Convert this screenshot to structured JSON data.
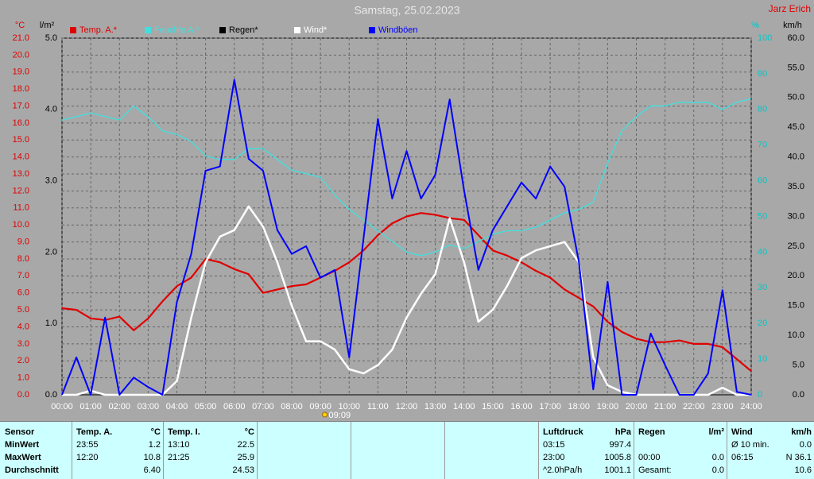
{
  "chart_data": {
    "type": "line",
    "title": "Samstag, 25.02.2023",
    "subtitle": "Jarz Erich",
    "xlim": [
      0,
      24
    ],
    "xticks": [
      {
        "value": 0,
        "label": "00:00"
      },
      {
        "value": 1,
        "label": "01:00"
      },
      {
        "value": 2,
        "label": "02:00"
      },
      {
        "value": 3,
        "label": "03:00"
      },
      {
        "value": 4,
        "label": "04:00"
      },
      {
        "value": 5,
        "label": "05:00"
      },
      {
        "value": 6,
        "label": "06:00"
      },
      {
        "value": 7,
        "label": "07:00"
      },
      {
        "value": 8,
        "label": "08:00"
      },
      {
        "value": 9,
        "label": "09:00"
      },
      {
        "value": 10,
        "label": "10:00"
      },
      {
        "value": 11,
        "label": "11:00"
      },
      {
        "value": 12,
        "label": "12:00"
      },
      {
        "value": 13,
        "label": "13:00"
      },
      {
        "value": 14,
        "label": "14:00"
      },
      {
        "value": 15,
        "label": "15:00"
      },
      {
        "value": 16,
        "label": "16:00"
      },
      {
        "value": 17,
        "label": "17:00"
      },
      {
        "value": 18,
        "label": "18:00"
      },
      {
        "value": 19,
        "label": "19:00"
      },
      {
        "value": 20,
        "label": "20:00"
      },
      {
        "value": 21,
        "label": "21:00"
      },
      {
        "value": 22,
        "label": "22:00"
      },
      {
        "value": 23,
        "label": "23:00"
      },
      {
        "value": 24,
        "label": "24:00"
      }
    ],
    "grid": true,
    "annotation": {
      "text": "09:09",
      "x": 9.15
    },
    "axes": [
      {
        "label": "°C",
        "color": "#e00000",
        "lim": [
          0,
          21
        ],
        "ticks": [
          {
            "value": 0,
            "label": "0.0"
          },
          {
            "value": 1,
            "label": "1.0"
          },
          {
            "value": 2,
            "label": "2.0"
          },
          {
            "value": 3,
            "label": "3.0"
          },
          {
            "value": 4,
            "label": "4.0"
          },
          {
            "value": 5,
            "label": "5.0"
          },
          {
            "value": 6,
            "label": "6.0"
          },
          {
            "value": 7,
            "label": "7.0"
          },
          {
            "value": 8,
            "label": "8.0"
          },
          {
            "value": 9,
            "label": "9.0"
          },
          {
            "value": 10,
            "label": "10.0"
          },
          {
            "value": 11,
            "label": "11.0"
          },
          {
            "value": 12,
            "label": "12.0"
          },
          {
            "value": 13,
            "label": "13.0"
          },
          {
            "value": 14,
            "label": "14.0"
          },
          {
            "value": 15,
            "label": "15.0"
          },
          {
            "value": 16,
            "label": "16.0"
          },
          {
            "value": 17,
            "label": "17.0"
          },
          {
            "value": 18,
            "label": "18.0"
          },
          {
            "value": 19,
            "label": "19.0"
          },
          {
            "value": 20,
            "label": "20.0"
          },
          {
            "value": 21,
            "label": "21.0"
          }
        ]
      },
      {
        "label": "l/m²",
        "color": "#000000",
        "lim": [
          0,
          5
        ],
        "ticks": [
          {
            "value": 0,
            "label": "0.0"
          },
          {
            "value": 1,
            "label": "1.0"
          },
          {
            "value": 2,
            "label": "2.0"
          },
          {
            "value": 3,
            "label": "3.0"
          },
          {
            "value": 4,
            "label": "4.0"
          },
          {
            "value": 5,
            "label": "5.0"
          }
        ]
      },
      {
        "label": "%",
        "color": "#00c8c8",
        "lim": [
          0,
          100
        ],
        "ticks": [
          0,
          10,
          20,
          30,
          40,
          50,
          60,
          70,
          80,
          90,
          100
        ]
      },
      {
        "label": "km/h",
        "color": "#000000",
        "lim": [
          0,
          60
        ],
        "ticks": [
          {
            "value": 0,
            "label": "0.0"
          },
          {
            "value": 5,
            "label": "5.0"
          },
          {
            "value": 10,
            "label": "10.0"
          },
          {
            "value": 15,
            "label": "15.0"
          },
          {
            "value": 20,
            "label": "20.0"
          },
          {
            "value": 25,
            "label": "25.0"
          },
          {
            "value": 30,
            "label": "30.0"
          },
          {
            "value": 35,
            "label": "35.0"
          },
          {
            "value": 40,
            "label": "40.0"
          },
          {
            "value": 45,
            "label": "45.0"
          },
          {
            "value": 50,
            "label": "50.0"
          },
          {
            "value": 55,
            "label": "55.0"
          },
          {
            "value": 60,
            "label": "60.0"
          }
        ]
      }
    ],
    "x": [
      0,
      0.5,
      1,
      1.5,
      2,
      2.5,
      3,
      3.5,
      4,
      4.5,
      5,
      5.5,
      6,
      6.5,
      7,
      7.5,
      8,
      8.5,
      9,
      9.5,
      10,
      10.5,
      11,
      11.5,
      12,
      12.5,
      13,
      13.5,
      14,
      14.5,
      15,
      15.5,
      16,
      16.5,
      17,
      17.5,
      18,
      18.5,
      19,
      19.5,
      20,
      20.5,
      21,
      21.5,
      22,
      22.5,
      23,
      23.5,
      24
    ],
    "series": [
      {
        "name": "Temp. A.*",
        "color": "#e00000",
        "axis": 0,
        "width": 2.2,
        "values": [
          5.1,
          5.0,
          4.5,
          4.4,
          4.6,
          3.8,
          4.5,
          5.5,
          6.4,
          6.9,
          8.0,
          7.8,
          7.4,
          7.1,
          6.0,
          6.2,
          6.4,
          6.5,
          6.9,
          7.3,
          7.8,
          8.5,
          9.4,
          10.1,
          10.5,
          10.7,
          10.6,
          10.4,
          10.3,
          9.4,
          8.5,
          8.2,
          7.8,
          7.3,
          6.9,
          6.2,
          5.7,
          5.2,
          4.3,
          3.7,
          3.3,
          3.1,
          3.1,
          3.2,
          3.0,
          3.0,
          2.8,
          2.1,
          1.4
        ]
      },
      {
        "name": "Feuchte A.*",
        "color": "#40e0e0",
        "axis": 2,
        "width": 1.3,
        "values": [
          77,
          78,
          79,
          78,
          77,
          81,
          78,
          74,
          73,
          71,
          67,
          66,
          66,
          69,
          69,
          66,
          63,
          62,
          61,
          56,
          52,
          49,
          46,
          43,
          40,
          39,
          40,
          42,
          41,
          43,
          45,
          46,
          46,
          47,
          49,
          51,
          52,
          54,
          65,
          74,
          78,
          81,
          81,
          82,
          82,
          82,
          80,
          82,
          83
        ]
      },
      {
        "name": "Regen*",
        "color": "#000000",
        "axis": 1,
        "width": 1,
        "values": [
          0,
          0,
          0,
          0,
          0,
          0,
          0,
          0,
          0,
          0,
          0,
          0,
          0,
          0,
          0,
          0,
          0,
          0,
          0,
          0,
          0,
          0,
          0,
          0,
          0,
          0,
          0,
          0,
          0,
          0,
          0,
          0,
          0,
          0,
          0,
          0,
          0,
          0,
          0,
          0,
          0,
          0,
          0,
          0,
          0,
          0,
          0,
          0,
          0
        ]
      },
      {
        "name": "Wind*",
        "color": "#ffffff",
        "axis": 3,
        "width": 2.5,
        "values": [
          0,
          0,
          0.7,
          0,
          0,
          0,
          0,
          0,
          2.3,
          13,
          22.3,
          26.6,
          27.7,
          31.7,
          28.3,
          22.3,
          15,
          9,
          9,
          7.6,
          4.3,
          3.6,
          5,
          7.6,
          13,
          17,
          20.3,
          29.7,
          22.3,
          12.3,
          14.3,
          18.3,
          23,
          24.3,
          25,
          25.7,
          22.3,
          6.3,
          1.6,
          0.5,
          0,
          0,
          0,
          0,
          0,
          0,
          1.2,
          0,
          0
        ]
      },
      {
        "name": "Windböen",
        "color": "#0000ff",
        "axis": 3,
        "width": 2,
        "values": [
          0,
          6.3,
          0,
          13,
          0,
          2.9,
          1.3,
          0,
          15.6,
          23.7,
          37.7,
          38.4,
          53,
          39.7,
          37.7,
          27.7,
          23.7,
          25,
          19.7,
          21,
          6.3,
          26.3,
          46.4,
          33,
          41,
          33,
          37,
          49.7,
          34.4,
          21,
          27.7,
          31.7,
          35.7,
          33,
          38.4,
          35,
          22.3,
          0.9,
          19,
          0,
          0,
          10.3,
          5,
          0,
          0,
          3.6,
          17.6,
          0.5,
          0
        ]
      }
    ]
  },
  "table": {
    "sensor": [
      "Sensor",
      "MinWert",
      "MaxWert",
      "Durchschnitt"
    ],
    "groups": [
      {
        "rows": [
          [
            "Temp. A.",
            "°C"
          ],
          [
            "23:55",
            "1.2"
          ],
          [
            "12:20",
            "10.8"
          ],
          [
            null,
            "6.40"
          ]
        ]
      },
      {
        "rows": [
          [
            "Temp. I.",
            "°C"
          ],
          [
            "13:10",
            "22.5"
          ],
          [
            "21:25",
            "25.9"
          ],
          [
            null,
            "24.53"
          ]
        ]
      },
      {
        "rows": [
          [
            "Luftdruck",
            "hPa"
          ],
          [
            "03:15",
            "997.4"
          ],
          [
            "23:00",
            "1005.8"
          ],
          [
            "^2.0hPa/h",
            "1001.1"
          ]
        ]
      },
      {
        "rows": [
          [
            "Regen",
            "l/m²"
          ],
          [
            null,
            null
          ],
          [
            "00:00",
            "0.0"
          ],
          [
            "Gesamt:",
            "0.0"
          ]
        ]
      },
      {
        "rows": [
          [
            "Wind",
            "km/h"
          ],
          [
            "Ø 10 min.",
            "0.0"
          ],
          [
            "06:15",
            "N 36.1"
          ],
          [
            null,
            "10.6"
          ]
        ]
      }
    ]
  }
}
